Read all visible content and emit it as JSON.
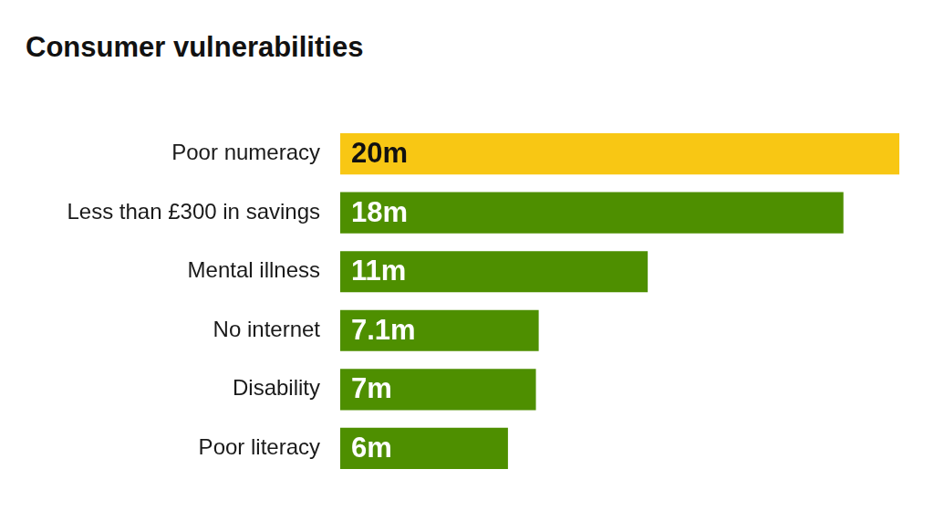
{
  "chart_data": {
    "type": "bar",
    "title": "Consumer vulnerabilities",
    "orientation": "horizontal",
    "categories": [
      "Poor numeracy",
      "Less than £300 in savings",
      "Mental illness",
      "No internet",
      "Disability",
      "Poor literacy"
    ],
    "values": [
      20,
      18,
      11,
      7.1,
      7,
      6
    ],
    "value_labels": [
      "20m",
      "18m",
      "11m",
      "7.1m",
      "7m",
      "6m"
    ],
    "colors": [
      "#f8c714",
      "#4e8f00",
      "#4e8f00",
      "#4e8f00",
      "#4e8f00",
      "#4e8f00"
    ],
    "xlim": [
      0,
      20
    ],
    "grid": false,
    "data_labels": true,
    "tick_labels": "y"
  }
}
